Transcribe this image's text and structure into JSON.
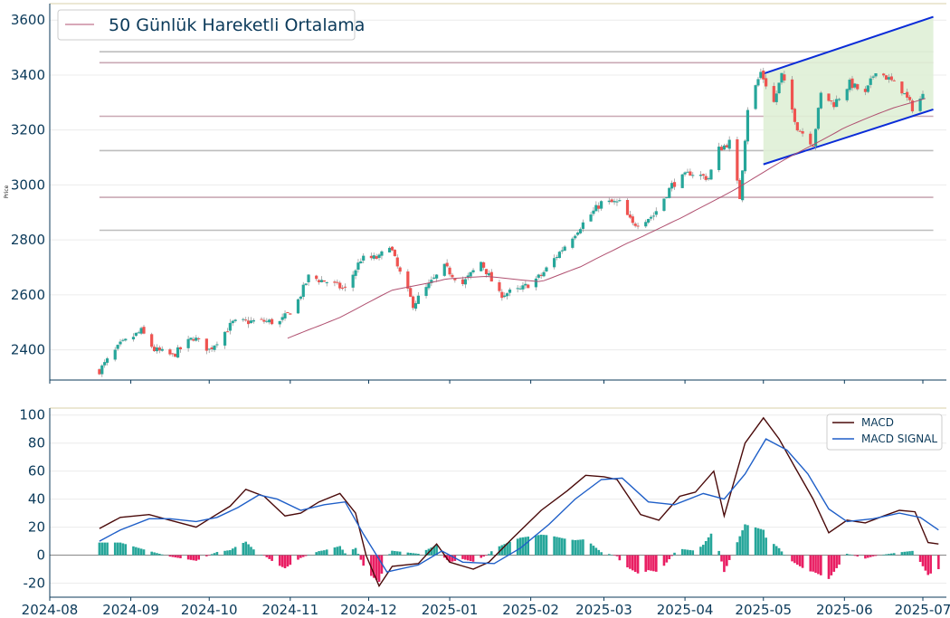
{
  "chart_data": [
    {
      "type": "candlestick",
      "title": "",
      "ylabel": "Price",
      "ylim": [
        2290,
        3660
      ],
      "yticks": [
        2400,
        2600,
        2800,
        3000,
        3200,
        3400,
        3600
      ],
      "legend": {
        "position": "top-left",
        "entries": [
          "50 Günlük Hareketli Ortalama"
        ]
      },
      "colors": {
        "up": "#26a69a",
        "down": "#ef5350",
        "ma": "#b05070",
        "channel_line": "#0a2cd8",
        "channel_fill": "#dff0d6",
        "levels": "#bdbdbd"
      },
      "horizontal_levels": [
        2835,
        2955,
        3125,
        3250,
        3445,
        3485
      ],
      "channel": {
        "upper": [
          [
            "2025-05-01",
            3405
          ],
          [
            "2025-07-05",
            3612
          ]
        ],
        "lower": [
          [
            "2025-05-01",
            3075
          ],
          [
            "2025-07-05",
            3275
          ]
        ]
      },
      "ohlc_anchor_closes": [
        [
          "2024-08-20",
          2325
        ],
        [
          "2024-08-28",
          2418
        ],
        [
          "2024-09-05",
          2468
        ],
        [
          "2024-09-10",
          2400
        ],
        [
          "2024-09-17",
          2378
        ],
        [
          "2024-09-25",
          2445
        ],
        [
          "2024-10-01",
          2400
        ],
        [
          "2024-10-10",
          2498
        ],
        [
          "2024-10-20",
          2505
        ],
        [
          "2024-10-28",
          2500
        ],
        [
          "2024-11-03",
          2560
        ],
        [
          "2024-11-08",
          2665
        ],
        [
          "2024-11-15",
          2648
        ],
        [
          "2024-11-22",
          2620
        ],
        [
          "2024-11-28",
          2730
        ],
        [
          "2024-12-05",
          2735
        ],
        [
          "2024-12-09",
          2785
        ],
        [
          "2024-12-12",
          2700
        ],
        [
          "2024-12-18",
          2565
        ],
        [
          "2024-12-24",
          2635
        ],
        [
          "2024-12-30",
          2700
        ],
        [
          "2025-01-06",
          2640
        ],
        [
          "2025-01-13",
          2720
        ],
        [
          "2025-01-20",
          2600
        ],
        [
          "2025-01-28",
          2618
        ],
        [
          "2025-02-05",
          2670
        ],
        [
          "2025-02-12",
          2755
        ],
        [
          "2025-02-20",
          2850
        ],
        [
          "2025-02-28",
          2935
        ],
        [
          "2025-03-07",
          2935
        ],
        [
          "2025-03-12",
          2855
        ],
        [
          "2025-03-20",
          2890
        ],
        [
          "2025-03-27",
          3000
        ],
        [
          "2025-04-03",
          3045
        ],
        [
          "2025-04-10",
          3025
        ],
        [
          "2025-04-14",
          3130
        ],
        [
          "2025-04-18",
          3155
        ],
        [
          "2025-04-22",
          2955
        ],
        [
          "2025-04-25",
          3280
        ],
        [
          "2025-04-30",
          3410
        ],
        [
          "2025-05-05",
          3300
        ],
        [
          "2025-05-08",
          3400
        ],
        [
          "2025-05-14",
          3210
        ],
        [
          "2025-05-20",
          3150
        ],
        [
          "2025-05-23",
          3330
        ],
        [
          "2025-05-28",
          3295
        ],
        [
          "2025-06-03",
          3370
        ],
        [
          "2025-06-09",
          3330
        ],
        [
          "2025-06-13",
          3420
        ],
        [
          "2025-06-18",
          3385
        ],
        [
          "2025-06-23",
          3345
        ],
        [
          "2025-06-27",
          3280
        ],
        [
          "2025-07-01",
          3325
        ]
      ],
      "ma_anchors": [
        [
          "2024-10-31",
          2440
        ],
        [
          "2024-11-20",
          2520
        ],
        [
          "2024-12-10",
          2615
        ],
        [
          "2024-12-31",
          2660
        ],
        [
          "2025-01-15",
          2665
        ],
        [
          "2025-02-05",
          2650
        ],
        [
          "2025-02-20",
          2700
        ],
        [
          "2025-03-10",
          2790
        ],
        [
          "2025-03-31",
          2880
        ],
        [
          "2025-04-20",
          2985
        ],
        [
          "2025-05-10",
          3095
        ],
        [
          "2025-06-01",
          3210
        ],
        [
          "2025-06-20",
          3280
        ],
        [
          "2025-07-03",
          3320
        ]
      ]
    },
    {
      "type": "line+bar",
      "title": "",
      "ylim": [
        -30,
        105
      ],
      "yticks": [
        -20,
        0,
        20,
        40,
        60,
        80,
        100
      ],
      "legend": {
        "position": "top-right",
        "entries": [
          "MACD",
          "MACD SIGNAL"
        ]
      },
      "colors": {
        "macd": "#4a0a0a",
        "signal": "#1f5fc8",
        "hist_pos": "#26a69a",
        "hist_neg": "#e91e63",
        "zero": "#888888"
      },
      "xticks": [
        "2024-08",
        "2024-09",
        "2024-10",
        "2024-11",
        "2024-12",
        "2025-01",
        "2025-02",
        "2025-03",
        "2025-04",
        "2025-05",
        "2025-06",
        "2025-07"
      ],
      "xlim": [
        "2024-08-01",
        "2025-07-10"
      ],
      "series": [
        {
          "name": "MACD",
          "points": [
            [
              "2024-08-20",
              19
            ],
            [
              "2024-08-28",
              27
            ],
            [
              "2024-09-08",
              29
            ],
            [
              "2024-09-16",
              25
            ],
            [
              "2024-09-26",
              20
            ],
            [
              "2024-10-02",
              27
            ],
            [
              "2024-10-09",
              35
            ],
            [
              "2024-10-15",
              47
            ],
            [
              "2024-10-22",
              42
            ],
            [
              "2024-10-30",
              28
            ],
            [
              "2024-11-05",
              30
            ],
            [
              "2024-11-12",
              38
            ],
            [
              "2024-11-20",
              44
            ],
            [
              "2024-11-26",
              30
            ],
            [
              "2024-11-30",
              0
            ],
            [
              "2024-12-05",
              -22
            ],
            [
              "2024-12-10",
              -8
            ],
            [
              "2024-12-20",
              -6
            ],
            [
              "2024-12-27",
              8
            ],
            [
              "2025-01-01",
              -5
            ],
            [
              "2025-01-10",
              -10
            ],
            [
              "2025-01-16",
              -5
            ],
            [
              "2025-01-25",
              12
            ],
            [
              "2025-02-05",
              32
            ],
            [
              "2025-02-15",
              46
            ],
            [
              "2025-02-22",
              57
            ],
            [
              "2025-03-01",
              56
            ],
            [
              "2025-03-06",
              54
            ],
            [
              "2025-03-15",
              29
            ],
            [
              "2025-03-22",
              25
            ],
            [
              "2025-03-30",
              42
            ],
            [
              "2025-04-05",
              45
            ],
            [
              "2025-04-12",
              60
            ],
            [
              "2025-04-16",
              28
            ],
            [
              "2025-04-24",
              80
            ],
            [
              "2025-05-01",
              98
            ],
            [
              "2025-05-07",
              83
            ],
            [
              "2025-05-13",
              63
            ],
            [
              "2025-05-20",
              40
            ],
            [
              "2025-05-26",
              16
            ],
            [
              "2025-06-02",
              25
            ],
            [
              "2025-06-09",
              23
            ],
            [
              "2025-06-16",
              28
            ],
            [
              "2025-06-22",
              32
            ],
            [
              "2025-06-28",
              31
            ],
            [
              "2025-07-03",
              9
            ],
            [
              "2025-07-07",
              8
            ]
          ]
        },
        {
          "name": "MACD SIGNAL",
          "points": [
            [
              "2024-08-20",
              10
            ],
            [
              "2024-08-28",
              18
            ],
            [
              "2024-09-08",
              26
            ],
            [
              "2024-09-16",
              26
            ],
            [
              "2024-09-26",
              24
            ],
            [
              "2024-10-04",
              27
            ],
            [
              "2024-10-12",
              34
            ],
            [
              "2024-10-20",
              43
            ],
            [
              "2024-10-27",
              40
            ],
            [
              "2024-11-05",
              32
            ],
            [
              "2024-11-14",
              36
            ],
            [
              "2024-11-22",
              38
            ],
            [
              "2024-11-29",
              15
            ],
            [
              "2024-12-08",
              -12
            ],
            [
              "2024-12-20",
              -7
            ],
            [
              "2024-12-29",
              3
            ],
            [
              "2025-01-06",
              -5
            ],
            [
              "2025-01-18",
              -6
            ],
            [
              "2025-01-28",
              5
            ],
            [
              "2025-02-08",
              22
            ],
            [
              "2025-02-18",
              40
            ],
            [
              "2025-02-28",
              54
            ],
            [
              "2025-03-08",
              55
            ],
            [
              "2025-03-18",
              38
            ],
            [
              "2025-03-28",
              36
            ],
            [
              "2025-04-08",
              44
            ],
            [
              "2025-04-16",
              40
            ],
            [
              "2025-04-24",
              58
            ],
            [
              "2025-05-02",
              83
            ],
            [
              "2025-05-10",
              75
            ],
            [
              "2025-05-18",
              58
            ],
            [
              "2025-05-26",
              33
            ],
            [
              "2025-06-02",
              24
            ],
            [
              "2025-06-12",
              26
            ],
            [
              "2025-06-22",
              30
            ],
            [
              "2025-06-30",
              27
            ],
            [
              "2025-07-07",
              18
            ]
          ]
        }
      ]
    }
  ]
}
